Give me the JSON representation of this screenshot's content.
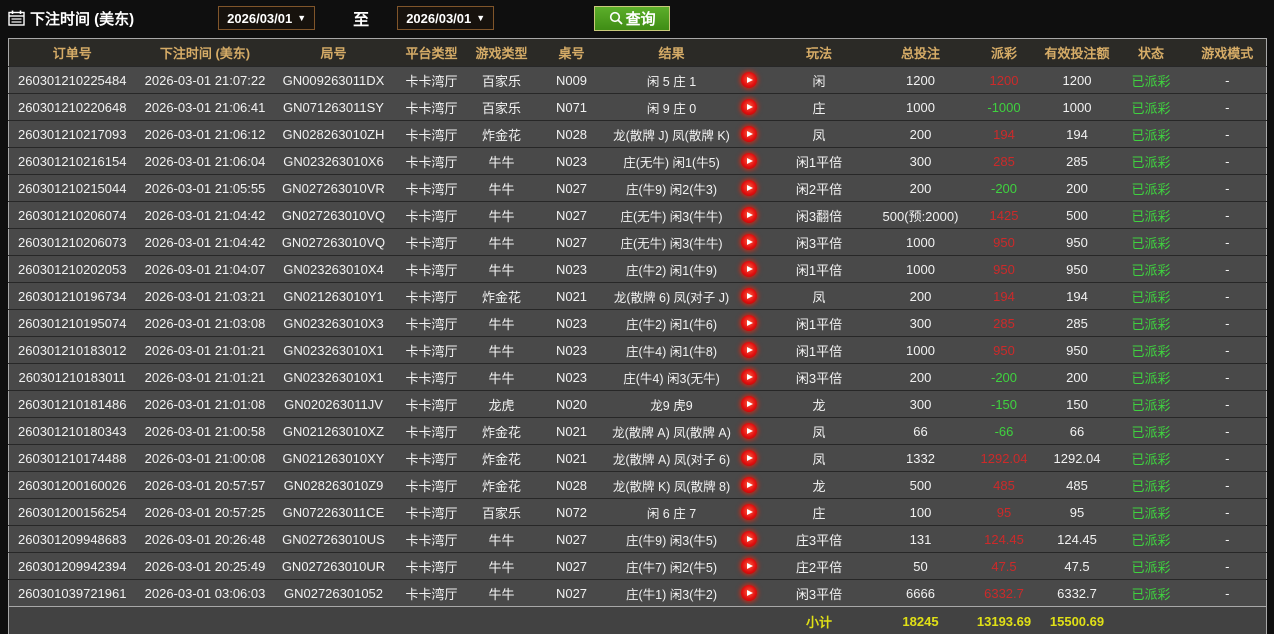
{
  "toolbar": {
    "label": "下注时间 (美东)",
    "calendar_icon": "calendar-icon",
    "date_from": "2026/03/01",
    "date_to": "2026/03/01",
    "caret": "▼",
    "to_label": "至",
    "search_icon": "search-icon",
    "query_label": "查询"
  },
  "colors": {
    "header_text": "#d6ac67",
    "row_bg": "#494949",
    "header_bg": "#2b2a26",
    "payout_win_red": "#cc2a2a",
    "payout_loss_green": "#3fd23f",
    "status_green": "#3fd23f",
    "subtotal_yellow": "#e0e016",
    "query_button_green": "#4c9f1e",
    "datebox_border_brown": "#80552a"
  },
  "table": {
    "headers": [
      {
        "key": "order",
        "label": "订单号"
      },
      {
        "key": "time",
        "label": "下注时间 (美东)"
      },
      {
        "key": "round",
        "label": "局号"
      },
      {
        "key": "platform",
        "label": "平台类型"
      },
      {
        "key": "game",
        "label": "游戏类型"
      },
      {
        "key": "tableno",
        "label": "桌号"
      },
      {
        "key": "result",
        "label": "结果"
      },
      {
        "key": "replay",
        "label": ""
      },
      {
        "key": "play",
        "label": "玩法"
      },
      {
        "key": "bet",
        "label": "总投注"
      },
      {
        "key": "payout",
        "label": "派彩"
      },
      {
        "key": "valid",
        "label": "有效投注额"
      },
      {
        "key": "status",
        "label": "状态"
      },
      {
        "key": "mode",
        "label": "游戏模式"
      }
    ],
    "rows": [
      {
        "order": "260301210225484",
        "time": "2026-03-01 21:07:22",
        "round": "GN009263011DX",
        "platform": "卡卡湾厅",
        "game": "百家乐",
        "tableno": "N009",
        "result": "闲 5 庄 1",
        "play": "闲",
        "bet": "1200",
        "payout": "1200",
        "payout_color": "pos",
        "valid": "1200",
        "status": "已派彩",
        "mode": "-"
      },
      {
        "order": "260301210220648",
        "time": "2026-03-01 21:06:41",
        "round": "GN071263011SY",
        "platform": "卡卡湾厅",
        "game": "百家乐",
        "tableno": "N071",
        "result": "闲 9 庄 0",
        "play": "庄",
        "bet": "1000",
        "payout": "-1000",
        "payout_color": "neg",
        "valid": "1000",
        "status": "已派彩",
        "mode": "-"
      },
      {
        "order": "260301210217093",
        "time": "2026-03-01 21:06:12",
        "round": "GN028263010ZH",
        "platform": "卡卡湾厅",
        "game": "炸金花",
        "tableno": "N028",
        "result": "龙(散牌 J) 凤(散牌 K)",
        "play": "凤",
        "bet": "200",
        "payout": "194",
        "payout_color": "pos",
        "valid": "194",
        "status": "已派彩",
        "mode": "-"
      },
      {
        "order": "260301210216154",
        "time": "2026-03-01 21:06:04",
        "round": "GN023263010X6",
        "platform": "卡卡湾厅",
        "game": "牛牛",
        "tableno": "N023",
        "result": "庄(无牛) 闲1(牛5)",
        "play": "闲1平倍",
        "bet": "300",
        "payout": "285",
        "payout_color": "pos",
        "valid": "285",
        "status": "已派彩",
        "mode": "-"
      },
      {
        "order": "260301210215044",
        "time": "2026-03-01 21:05:55",
        "round": "GN027263010VR",
        "platform": "卡卡湾厅",
        "game": "牛牛",
        "tableno": "N027",
        "result": "庄(牛9) 闲2(牛3)",
        "play": "闲2平倍",
        "bet": "200",
        "payout": "-200",
        "payout_color": "neg",
        "valid": "200",
        "status": "已派彩",
        "mode": "-"
      },
      {
        "order": "260301210206074",
        "time": "2026-03-01 21:04:42",
        "round": "GN027263010VQ",
        "platform": "卡卡湾厅",
        "game": "牛牛",
        "tableno": "N027",
        "result": "庄(无牛) 闲3(牛牛)",
        "play": "闲3翻倍",
        "bet": "500(预:2000)",
        "payout": "1425",
        "payout_color": "pos",
        "valid": "500",
        "status": "已派彩",
        "mode": "-"
      },
      {
        "order": "260301210206073",
        "time": "2026-03-01 21:04:42",
        "round": "GN027263010VQ",
        "platform": "卡卡湾厅",
        "game": "牛牛",
        "tableno": "N027",
        "result": "庄(无牛) 闲3(牛牛)",
        "play": "闲3平倍",
        "bet": "1000",
        "payout": "950",
        "payout_color": "pos",
        "valid": "950",
        "status": "已派彩",
        "mode": "-"
      },
      {
        "order": "260301210202053",
        "time": "2026-03-01 21:04:07",
        "round": "GN023263010X4",
        "platform": "卡卡湾厅",
        "game": "牛牛",
        "tableno": "N023",
        "result": "庄(牛2) 闲1(牛9)",
        "play": "闲1平倍",
        "bet": "1000",
        "payout": "950",
        "payout_color": "pos",
        "valid": "950",
        "status": "已派彩",
        "mode": "-"
      },
      {
        "order": "260301210196734",
        "time": "2026-03-01 21:03:21",
        "round": "GN021263010Y1",
        "platform": "卡卡湾厅",
        "game": "炸金花",
        "tableno": "N021",
        "result": "龙(散牌 6) 凤(对子 J)",
        "play": "凤",
        "bet": "200",
        "payout": "194",
        "payout_color": "pos",
        "valid": "194",
        "status": "已派彩",
        "mode": "-"
      },
      {
        "order": "260301210195074",
        "time": "2026-03-01 21:03:08",
        "round": "GN023263010X3",
        "platform": "卡卡湾厅",
        "game": "牛牛",
        "tableno": "N023",
        "result": "庄(牛2) 闲1(牛6)",
        "play": "闲1平倍",
        "bet": "300",
        "payout": "285",
        "payout_color": "pos",
        "valid": "285",
        "status": "已派彩",
        "mode": "-"
      },
      {
        "order": "260301210183012",
        "time": "2026-03-01 21:01:21",
        "round": "GN023263010X1",
        "platform": "卡卡湾厅",
        "game": "牛牛",
        "tableno": "N023",
        "result": "庄(牛4) 闲1(牛8)",
        "play": "闲1平倍",
        "bet": "1000",
        "payout": "950",
        "payout_color": "pos",
        "valid": "950",
        "status": "已派彩",
        "mode": "-"
      },
      {
        "order": "260301210183011",
        "time": "2026-03-01 21:01:21",
        "round": "GN023263010X1",
        "platform": "卡卡湾厅",
        "game": "牛牛",
        "tableno": "N023",
        "result": "庄(牛4) 闲3(无牛)",
        "play": "闲3平倍",
        "bet": "200",
        "payout": "-200",
        "payout_color": "neg",
        "valid": "200",
        "status": "已派彩",
        "mode": "-"
      },
      {
        "order": "260301210181486",
        "time": "2026-03-01 21:01:08",
        "round": "GN020263011JV",
        "platform": "卡卡湾厅",
        "game": "龙虎",
        "tableno": "N020",
        "result": "龙9 虎9",
        "play": "龙",
        "bet": "300",
        "payout": "-150",
        "payout_color": "neg",
        "valid": "150",
        "status": "已派彩",
        "mode": "-"
      },
      {
        "order": "260301210180343",
        "time": "2026-03-01 21:00:58",
        "round": "GN021263010XZ",
        "platform": "卡卡湾厅",
        "game": "炸金花",
        "tableno": "N021",
        "result": "龙(散牌 A) 凤(散牌 A)",
        "play": "凤",
        "bet": "66",
        "payout": "-66",
        "payout_color": "neg",
        "valid": "66",
        "status": "已派彩",
        "mode": "-"
      },
      {
        "order": "260301210174488",
        "time": "2026-03-01 21:00:08",
        "round": "GN021263010XY",
        "platform": "卡卡湾厅",
        "game": "炸金花",
        "tableno": "N021",
        "result": "龙(散牌 A) 凤(对子 6)",
        "play": "凤",
        "bet": "1332",
        "payout": "1292.04",
        "payout_color": "pos",
        "valid": "1292.04",
        "status": "已派彩",
        "mode": "-"
      },
      {
        "order": "260301200160026",
        "time": "2026-03-01 20:57:57",
        "round": "GN028263010Z9",
        "platform": "卡卡湾厅",
        "game": "炸金花",
        "tableno": "N028",
        "result": "龙(散牌 K) 凤(散牌 8)",
        "play": "龙",
        "bet": "500",
        "payout": "485",
        "payout_color": "pos",
        "valid": "485",
        "status": "已派彩",
        "mode": "-"
      },
      {
        "order": "260301200156254",
        "time": "2026-03-01 20:57:25",
        "round": "GN072263011CE",
        "platform": "卡卡湾厅",
        "game": "百家乐",
        "tableno": "N072",
        "result": "闲 6 庄 7",
        "play": "庄",
        "bet": "100",
        "payout": "95",
        "payout_color": "pos",
        "valid": "95",
        "status": "已派彩",
        "mode": "-"
      },
      {
        "order": "260301209948683",
        "time": "2026-03-01 20:26:48",
        "round": "GN027263010US",
        "platform": "卡卡湾厅",
        "game": "牛牛",
        "tableno": "N027",
        "result": "庄(牛9) 闲3(牛5)",
        "play": "庄3平倍",
        "bet": "131",
        "payout": "124.45",
        "payout_color": "pos",
        "valid": "124.45",
        "status": "已派彩",
        "mode": "-"
      },
      {
        "order": "260301209942394",
        "time": "2026-03-01 20:25:49",
        "round": "GN027263010UR",
        "platform": "卡卡湾厅",
        "game": "牛牛",
        "tableno": "N027",
        "result": "庄(牛7) 闲2(牛5)",
        "play": "庄2平倍",
        "bet": "50",
        "payout": "47.5",
        "payout_color": "pos",
        "valid": "47.5",
        "status": "已派彩",
        "mode": "-"
      },
      {
        "order": "260301039721961",
        "time": "2026-03-01 03:06:03",
        "round": "GN02726301052",
        "platform": "卡卡湾厅",
        "game": "牛牛",
        "tableno": "N027",
        "result": "庄(牛1) 闲3(牛2)",
        "play": "闲3平倍",
        "bet": "6666",
        "payout": "6332.7",
        "payout_color": "pos",
        "valid": "6332.7",
        "status": "已派彩",
        "mode": "-"
      }
    ],
    "subtotal": {
      "label": "小计",
      "bet": "18245",
      "payout": "13193.69",
      "valid": "15500.69"
    }
  }
}
